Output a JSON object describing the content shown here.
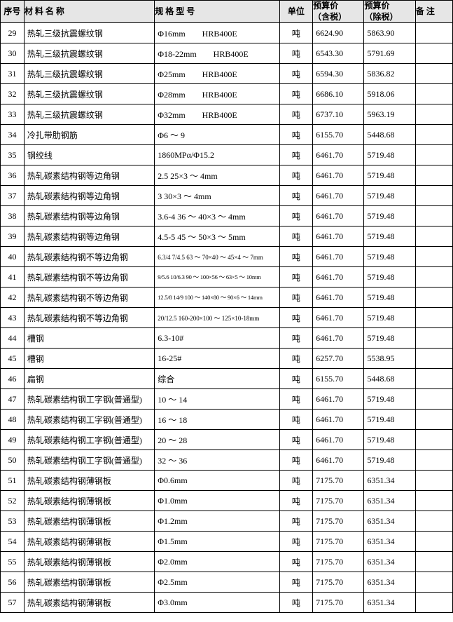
{
  "header": {
    "seq": "序号",
    "name": "材 料 名 称",
    "spec": "规 格 型 号",
    "unit": "单位",
    "price_tax_l1": "预算价",
    "price_tax_l2": "（含税）",
    "price_notax_l1": "预算价",
    "price_notax_l2": "（除税）",
    "note": "备 注"
  },
  "rows": [
    {
      "seq": "29",
      "name": "热轧三级抗震螺纹钢",
      "spec": "Φ16mm　　HRB400E",
      "unit": "吨",
      "p1": "6624.90",
      "p2": "5863.90",
      "note": "",
      "cls": ""
    },
    {
      "seq": "30",
      "name": "热轧三级抗震螺纹钢",
      "spec": "Φ18-22mm　　HRB400E",
      "unit": "吨",
      "p1": "6543.30",
      "p2": "5791.69",
      "note": "",
      "cls": ""
    },
    {
      "seq": "31",
      "name": "热轧三级抗震螺纹钢",
      "spec": "Φ25mm　　HRB400E",
      "unit": "吨",
      "p1": "6594.30",
      "p2": "5836.82",
      "note": "",
      "cls": ""
    },
    {
      "seq": "32",
      "name": "热轧三级抗震螺纹钢",
      "spec": "Φ28mm　　HRB400E",
      "unit": "吨",
      "p1": "6686.10",
      "p2": "5918.06",
      "note": "",
      "cls": ""
    },
    {
      "seq": "33",
      "name": "热轧三级抗震螺纹钢",
      "spec": "Φ32mm　　HRB400E",
      "unit": "吨",
      "p1": "6737.10",
      "p2": "5963.19",
      "note": "",
      "cls": ""
    },
    {
      "seq": "34",
      "name": "冷扎带肋钢筋",
      "spec": "Φ6 ～ 9",
      "unit": "吨",
      "p1": "6155.70",
      "p2": "5448.68",
      "note": "",
      "cls": ""
    },
    {
      "seq": "35",
      "name": "钢绞线",
      "spec": "1860MPα/Φ15.2",
      "unit": "吨",
      "p1": "6461.70",
      "p2": "5719.48",
      "note": "",
      "cls": ""
    },
    {
      "seq": "36",
      "name": "热轧碳素结构钢等边角钢",
      "spec": "2.5 25×3 ～ 4mm",
      "unit": "吨",
      "p1": "6461.70",
      "p2": "5719.48",
      "note": "",
      "cls": ""
    },
    {
      "seq": "37",
      "name": "热轧碳素结构钢等边角钢",
      "spec": "3 30×3 ～ 4mm",
      "unit": "吨",
      "p1": "6461.70",
      "p2": "5719.48",
      "note": "",
      "cls": ""
    },
    {
      "seq": "38",
      "name": "热轧碳素结构钢等边角钢",
      "spec": "3.6-4 36 ～ 40×3 ～ 4mm",
      "unit": "吨",
      "p1": "6461.70",
      "p2": "5719.48",
      "note": "",
      "cls": ""
    },
    {
      "seq": "39",
      "name": "热轧碳素结构钢等边角钢",
      "spec": "4.5-5 45 ～ 50×3 ～ 5mm",
      "unit": "吨",
      "p1": "6461.70",
      "p2": "5719.48",
      "note": "",
      "cls": ""
    },
    {
      "seq": "40",
      "name": "热轧碳素结构钢不等边角钢",
      "spec": "6.3/4 7/4.5 63 ～ 70×40 ～ 45×4 ～ 7mm",
      "unit": "吨",
      "p1": "6461.70",
      "p2": "5719.48",
      "note": "",
      "cls": "small"
    },
    {
      "seq": "41",
      "name": "热轧碳素结构钢不等边角钢",
      "spec": "9/5.6 10/6.3 90 ～ 100×56 ～ 63×5 ～ 10mm",
      "unit": "吨",
      "p1": "6461.70",
      "p2": "5719.48",
      "note": "",
      "cls": "xsmall"
    },
    {
      "seq": "42",
      "name": "热轧碳素结构钢不等边角钢",
      "spec": "12.5/8 14/9 100 ～ 140×80 ～ 90×6 ～ 14mm",
      "unit": "吨",
      "p1": "6461.70",
      "p2": "5719.48",
      "note": "",
      "cls": "xsmall"
    },
    {
      "seq": "43",
      "name": "热轧碳素结构钢不等边角钢",
      "spec": "20/12.5 160-200×100 ～ 125×10-18mm",
      "unit": "吨",
      "p1": "6461.70",
      "p2": "5719.48",
      "note": "",
      "cls": "small"
    },
    {
      "seq": "44",
      "name": "槽钢",
      "spec": "6.3-10#",
      "unit": "吨",
      "p1": "6461.70",
      "p2": "5719.48",
      "note": "",
      "cls": ""
    },
    {
      "seq": "45",
      "name": "槽钢",
      "spec": "16-25#",
      "unit": "吨",
      "p1": "6257.70",
      "p2": "5538.95",
      "note": "",
      "cls": ""
    },
    {
      "seq": "46",
      "name": "扁钢",
      "spec": "综合",
      "unit": "吨",
      "p1": "6155.70",
      "p2": "5448.68",
      "note": "",
      "cls": ""
    },
    {
      "seq": "47",
      "name": "热轧碳素结构钢工字钢(普通型)",
      "spec": "10 ～ 14",
      "unit": "吨",
      "p1": "6461.70",
      "p2": "5719.48",
      "note": "",
      "cls": ""
    },
    {
      "seq": "48",
      "name": "热轧碳素结构钢工字钢(普通型)",
      "spec": "16 ～ 18",
      "unit": "吨",
      "p1": "6461.70",
      "p2": "5719.48",
      "note": "",
      "cls": ""
    },
    {
      "seq": "49",
      "name": "热轧碳素结构钢工字钢(普通型)",
      "spec": "20 ～ 28",
      "unit": "吨",
      "p1": "6461.70",
      "p2": "5719.48",
      "note": "",
      "cls": ""
    },
    {
      "seq": "50",
      "name": "热轧碳素结构钢工字钢(普通型)",
      "spec": "32 ～ 36",
      "unit": "吨",
      "p1": "6461.70",
      "p2": "5719.48",
      "note": "",
      "cls": ""
    },
    {
      "seq": "51",
      "name": "热轧碳素结构钢薄钢板",
      "spec": "Φ0.6mm",
      "unit": "吨",
      "p1": "7175.70",
      "p2": "6351.34",
      "note": "",
      "cls": ""
    },
    {
      "seq": "52",
      "name": "热轧碳素结构钢薄钢板",
      "spec": "Φ1.0mm",
      "unit": "吨",
      "p1": "7175.70",
      "p2": "6351.34",
      "note": "",
      "cls": ""
    },
    {
      "seq": "53",
      "name": "热轧碳素结构钢薄钢板",
      "spec": "Φ1.2mm",
      "unit": "吨",
      "p1": "7175.70",
      "p2": "6351.34",
      "note": "",
      "cls": ""
    },
    {
      "seq": "54",
      "name": "热轧碳素结构钢薄钢板",
      "spec": "Φ1.5mm",
      "unit": "吨",
      "p1": "7175.70",
      "p2": "6351.34",
      "note": "",
      "cls": ""
    },
    {
      "seq": "55",
      "name": "热轧碳素结构钢薄钢板",
      "spec": "Φ2.0mm",
      "unit": "吨",
      "p1": "7175.70",
      "p2": "6351.34",
      "note": "",
      "cls": ""
    },
    {
      "seq": "56",
      "name": "热轧碳素结构钢薄钢板",
      "spec": "Φ2.5mm",
      "unit": "吨",
      "p1": "7175.70",
      "p2": "6351.34",
      "note": "",
      "cls": ""
    },
    {
      "seq": "57",
      "name": "热轧碳素结构钢薄钢板",
      "spec": "Φ3.0mm",
      "unit": "吨",
      "p1": "7175.70",
      "p2": "6351.34",
      "note": "",
      "cls": ""
    }
  ]
}
